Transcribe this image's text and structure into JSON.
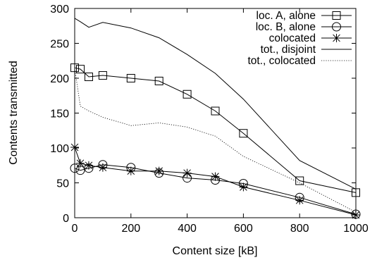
{
  "chart_data": {
    "type": "line",
    "title": "",
    "xlabel": "Content size [kB]",
    "ylabel": "Contents transmitted",
    "xlim": [
      0,
      1000
    ],
    "ylim": [
      0,
      300
    ],
    "xticks": [
      0,
      200,
      400,
      600,
      800,
      1000
    ],
    "yticks": [
      0,
      50,
      100,
      150,
      200,
      250,
      300
    ],
    "grid": false,
    "legend_position": "top-right",
    "series": [
      {
        "name": "loc. A, alone",
        "marker": "square",
        "line": "solid",
        "x": [
          0,
          20,
          50,
          100,
          200,
          300,
          400,
          500,
          600,
          800,
          1000
        ],
        "y": [
          215,
          213,
          202,
          204,
          200,
          196,
          177,
          153,
          121,
          53,
          36
        ]
      },
      {
        "name": "loc. B, alone",
        "marker": "circle",
        "line": "solid",
        "x": [
          0,
          20,
          50,
          100,
          200,
          300,
          400,
          500,
          600,
          800,
          1000
        ],
        "y": [
          71,
          68,
          71,
          76,
          72,
          64,
          57,
          54,
          49,
          29,
          5
        ]
      },
      {
        "name": "colocated",
        "marker": "asterisk",
        "line": "solid",
        "x": [
          0,
          20,
          50,
          100,
          200,
          300,
          400,
          500,
          600,
          800,
          1000
        ],
        "y": [
          101,
          78,
          75,
          72,
          67,
          67,
          64,
          59,
          44,
          25,
          4
        ]
      },
      {
        "name": "tot., disjoint",
        "marker": "none",
        "line": "solid",
        "x": [
          0,
          20,
          50,
          100,
          200,
          300,
          400,
          500,
          600,
          800,
          1000
        ],
        "y": [
          286,
          281,
          273,
          280,
          272,
          258,
          234,
          207,
          170,
          82,
          41
        ]
      },
      {
        "name": "tot., colocated",
        "marker": "none",
        "line": "dotted",
        "x": [
          0,
          20,
          50,
          100,
          200,
          300,
          400,
          500,
          600,
          800,
          1000
        ],
        "y": [
          214,
          160,
          153,
          144,
          132,
          136,
          130,
          117,
          88,
          50,
          8
        ]
      }
    ]
  }
}
